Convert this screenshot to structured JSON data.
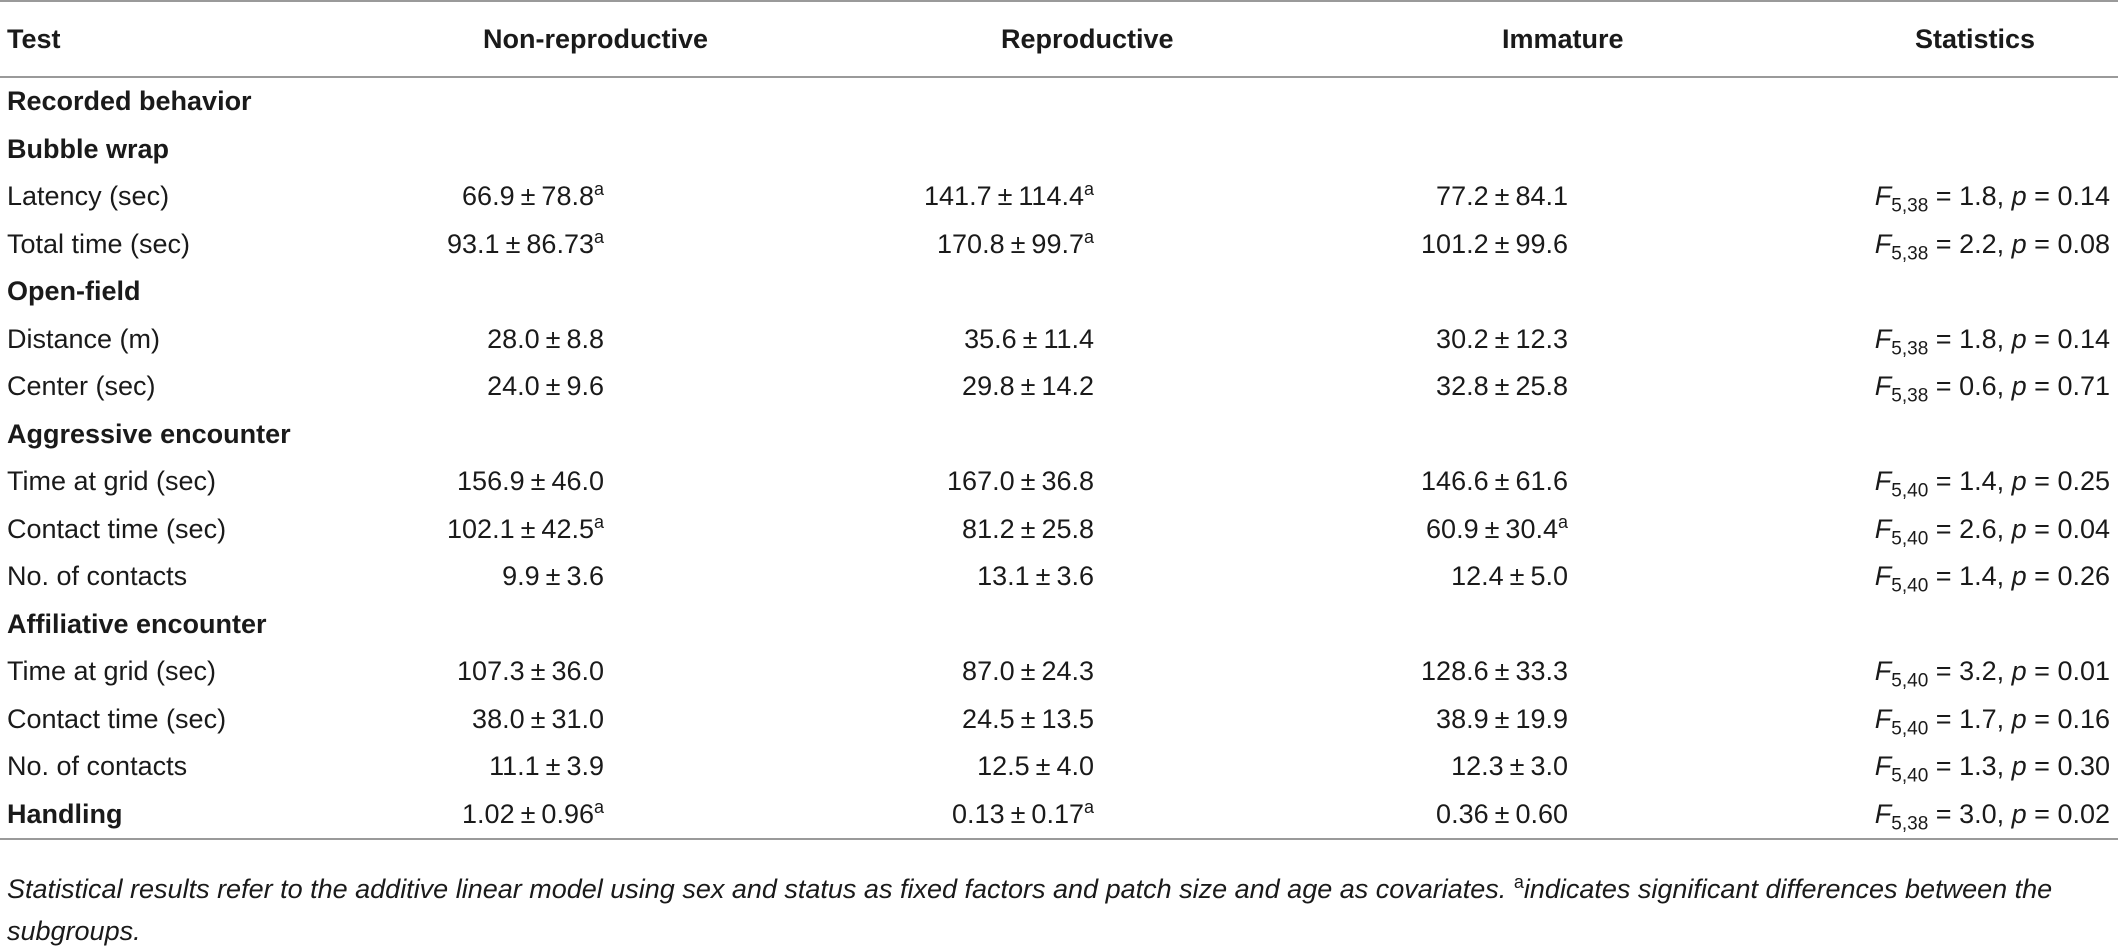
{
  "headers": {
    "test": "Test",
    "non_reproductive": "Non-reproductive",
    "reproductive": "Reproductive",
    "immature": "Immature",
    "statistics": "Statistics"
  },
  "pm": "±",
  "sup_mark": "a",
  "stat_letters": {
    "F": "F",
    "p": "p"
  },
  "rows": [
    {
      "kind": "section",
      "label": "Recorded behavior"
    },
    {
      "kind": "section",
      "label": "Bubble wrap"
    },
    {
      "kind": "data",
      "label": "Latency (sec)",
      "nonrep": {
        "mean": "66.9",
        "sd": "78.8",
        "sup": true
      },
      "rep": {
        "mean": "141.7",
        "sd": "114.4",
        "sup": true
      },
      "imm": {
        "mean": "77.2",
        "sd": "84.1",
        "sup": false
      },
      "stat": {
        "df": "5,38",
        "F": "1.8",
        "p": "0.14"
      }
    },
    {
      "kind": "data",
      "label": "Total time (sec)",
      "nonrep": {
        "mean": "93.1",
        "sd": "86.73",
        "sup": true
      },
      "rep": {
        "mean": "170.8",
        "sd": "99.7",
        "sup": true
      },
      "imm": {
        "mean": "101.2",
        "sd": "99.6",
        "sup": false
      },
      "stat": {
        "df": "5,38",
        "F": "2.2",
        "p": "0.08"
      }
    },
    {
      "kind": "section",
      "label": "Open-field"
    },
    {
      "kind": "data",
      "label": "Distance (m)",
      "nonrep": {
        "mean": "28.0",
        "sd": "8.8",
        "sup": false
      },
      "rep": {
        "mean": "35.6",
        "sd": "11.4",
        "sup": false
      },
      "imm": {
        "mean": "30.2",
        "sd": "12.3",
        "sup": false
      },
      "stat": {
        "df": "5,38",
        "F": "1.8",
        "p": "0.14"
      }
    },
    {
      "kind": "data",
      "label": "Center (sec)",
      "nonrep": {
        "mean": "24.0",
        "sd": "9.6",
        "sup": false
      },
      "rep": {
        "mean": "29.8",
        "sd": "14.2",
        "sup": false
      },
      "imm": {
        "mean": "32.8",
        "sd": "25.8",
        "sup": false
      },
      "stat": {
        "df": "5,38",
        "F": "0.6",
        "p": "0.71"
      }
    },
    {
      "kind": "section",
      "label": "Aggressive encounter"
    },
    {
      "kind": "data",
      "label": "Time at grid (sec)",
      "nonrep": {
        "mean": "156.9",
        "sd": "46.0",
        "sup": false
      },
      "rep": {
        "mean": "167.0",
        "sd": "36.8",
        "sup": false
      },
      "imm": {
        "mean": "146.6",
        "sd": "61.6",
        "sup": false
      },
      "stat": {
        "df": "5,40",
        "F": "1.4",
        "p": "0.25"
      }
    },
    {
      "kind": "data",
      "label": "Contact time (sec)",
      "nonrep": {
        "mean": "102.1",
        "sd": "42.5",
        "sup": true
      },
      "rep": {
        "mean": "81.2",
        "sd": "25.8",
        "sup": false
      },
      "imm": {
        "mean": "60.9",
        "sd": "30.4",
        "sup": true
      },
      "stat": {
        "df": "5,40",
        "F": "2.6",
        "p": "0.04"
      }
    },
    {
      "kind": "data",
      "label": "No. of contacts",
      "nonrep": {
        "mean": "9.9",
        "sd": "3.6",
        "sup": false
      },
      "rep": {
        "mean": "13.1",
        "sd": "3.6",
        "sup": false
      },
      "imm": {
        "mean": "12.4",
        "sd": "5.0",
        "sup": false
      },
      "stat": {
        "df": "5,40",
        "F": "1.4",
        "p": "0.26"
      }
    },
    {
      "kind": "section",
      "label": "Affiliative encounter"
    },
    {
      "kind": "data",
      "label": "Time at grid (sec)",
      "nonrep": {
        "mean": "107.3",
        "sd": "36.0",
        "sup": false
      },
      "rep": {
        "mean": "87.0",
        "sd": "24.3",
        "sup": false
      },
      "imm": {
        "mean": "128.6",
        "sd": "33.3",
        "sup": false
      },
      "stat": {
        "df": "5,40",
        "F": "3.2",
        "p": "0.01"
      }
    },
    {
      "kind": "data",
      "label": "Contact time (sec)",
      "nonrep": {
        "mean": "38.0",
        "sd": "31.0",
        "sup": false
      },
      "rep": {
        "mean": "24.5",
        "sd": "13.5",
        "sup": false
      },
      "imm": {
        "mean": "38.9",
        "sd": "19.9",
        "sup": false
      },
      "stat": {
        "df": "5,40",
        "F": "1.7",
        "p": "0.16"
      }
    },
    {
      "kind": "data",
      "label": "No. of contacts",
      "nonrep": {
        "mean": "11.1",
        "sd": "3.9",
        "sup": false
      },
      "rep": {
        "mean": "12.5",
        "sd": "4.0",
        "sup": false
      },
      "imm": {
        "mean": "12.3",
        "sd": "3.0",
        "sup": false
      },
      "stat": {
        "df": "5,40",
        "F": "1.3",
        "p": "0.30"
      }
    },
    {
      "kind": "data",
      "label": "Handling",
      "bold_label": true,
      "nonrep": {
        "mean": "1.02",
        "sd": "0.96",
        "sup": true
      },
      "rep": {
        "mean": "0.13",
        "sd": "0.17",
        "sup": true
      },
      "imm": {
        "mean": "0.36",
        "sd": "0.60",
        "sup": false
      },
      "stat": {
        "df": "5,38",
        "F": "3.0",
        "p": "0.02"
      }
    }
  ],
  "footnote": {
    "part1": "Statistical results refer to the additive linear model using sex and status as fixed factors and patch size and age as covariates. ",
    "sup": "a",
    "part2": "indicates significant differences between the subgroups."
  }
}
